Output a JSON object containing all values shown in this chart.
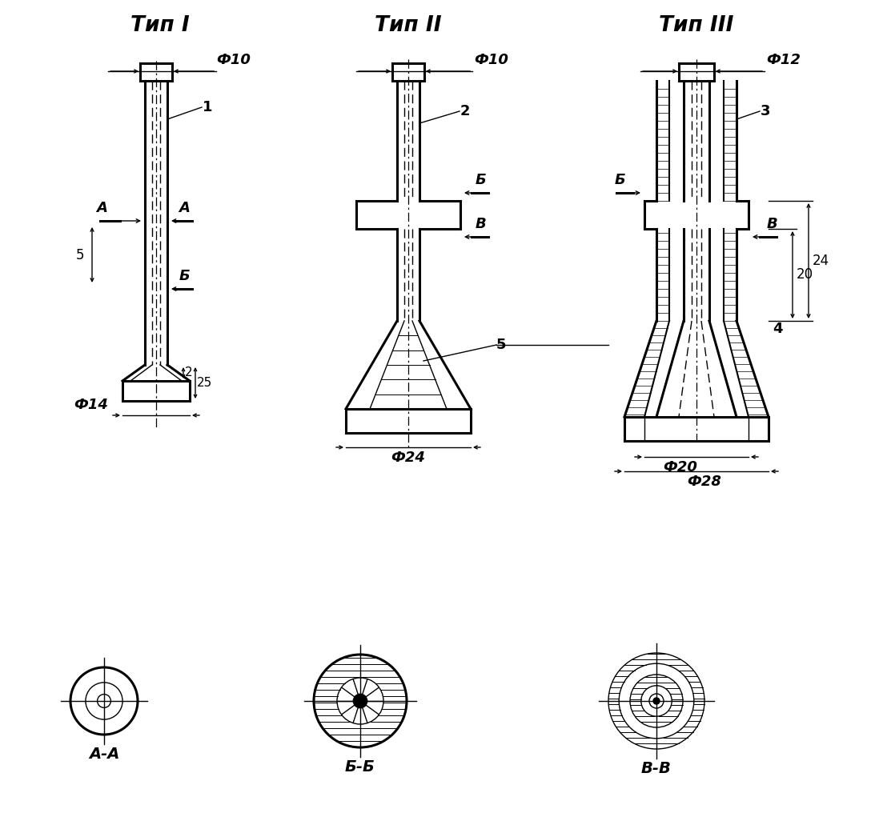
{
  "background": "#ffffff",
  "title_type1": "Тип I",
  "title_type2": "Тип II",
  "title_type3": "Тип III",
  "labels": {
    "phi10_1": "Ф10",
    "phi10_2": "Ф10",
    "phi12_3": "Ф12",
    "phi14": "Ф14",
    "phi24": "Ф24",
    "phi20": "Ф20",
    "phi28": "Ф28",
    "dim2": "2",
    "dim25": "25",
    "dim5": "5",
    "dim20": "20",
    "dim24": "24",
    "section_AA": "А-А",
    "section_BB": "Б-Б",
    "section_VV": "В-В",
    "label1": "1",
    "label2": "2",
    "label3": "3",
    "label4": "4",
    "label5": "5",
    "labelA": "А",
    "labelB": "Б",
    "labelV": "В"
  }
}
